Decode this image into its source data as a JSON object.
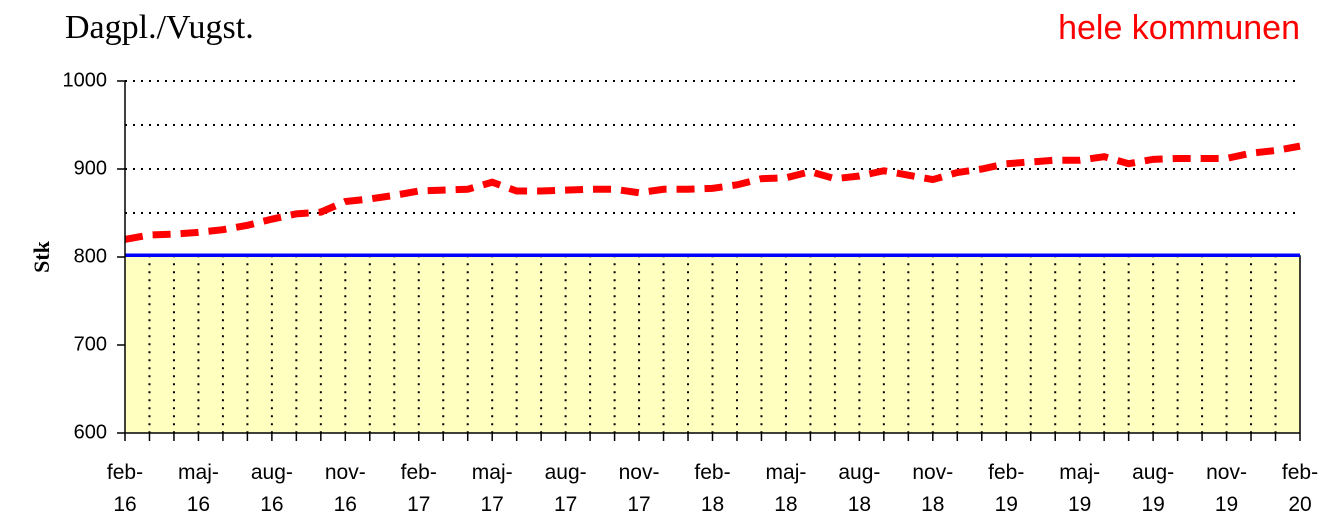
{
  "chart_data": {
    "type": "line",
    "title": "Dagpl./Vugst.",
    "subtitle": "hele kommunen",
    "y_label": "Stk",
    "categories": [
      "feb-16",
      null,
      null,
      "maj-16",
      null,
      null,
      "aug-16",
      null,
      null,
      "nov-16",
      null,
      null,
      "feb-17",
      null,
      null,
      "maj-17",
      null,
      null,
      "aug-17",
      null,
      null,
      "nov-17",
      null,
      null,
      "feb-18",
      null,
      null,
      "maj-18",
      null,
      null,
      "aug-18",
      null,
      null,
      "nov-18",
      null,
      null,
      "feb-19",
      null,
      null,
      "maj-19",
      null,
      null,
      "aug-19",
      null,
      null,
      "nov-19",
      null,
      null,
      "feb-20"
    ],
    "series": [
      {
        "color": "#0000ff",
        "fill": "#ffffc0",
        "values": [
          802,
          802,
          802,
          802,
          802,
          802,
          802,
          802,
          802,
          802,
          802,
          802,
          802,
          802,
          802,
          802,
          802,
          802,
          802,
          802,
          802,
          802,
          802,
          802,
          802,
          802,
          802,
          802,
          802,
          802,
          802,
          802,
          802,
          802,
          802,
          802,
          802,
          802,
          802,
          802,
          802,
          802,
          802,
          802,
          802,
          802,
          802,
          802,
          802
        ]
      },
      {
        "color": "#ff0000",
        "dashed": true,
        "values": [
          820,
          825,
          826,
          828,
          831,
          836,
          843,
          849,
          851,
          863,
          866,
          870,
          875,
          876,
          877,
          885,
          875,
          875,
          876,
          877,
          877,
          873,
          877,
          877,
          878,
          882,
          889,
          890,
          897,
          889,
          892,
          898,
          893,
          888,
          896,
          900,
          906,
          908,
          910,
          910,
          914,
          906,
          911,
          912,
          912,
          912,
          918,
          921,
          926
        ]
      }
    ],
    "ylim": [
      600,
      1000
    ],
    "yticks": [
      600,
      700,
      800,
      900,
      1000
    ],
    "grid_lines": [
      650,
      700,
      750,
      800,
      850,
      900,
      950,
      1000
    ],
    "grid": true
  }
}
